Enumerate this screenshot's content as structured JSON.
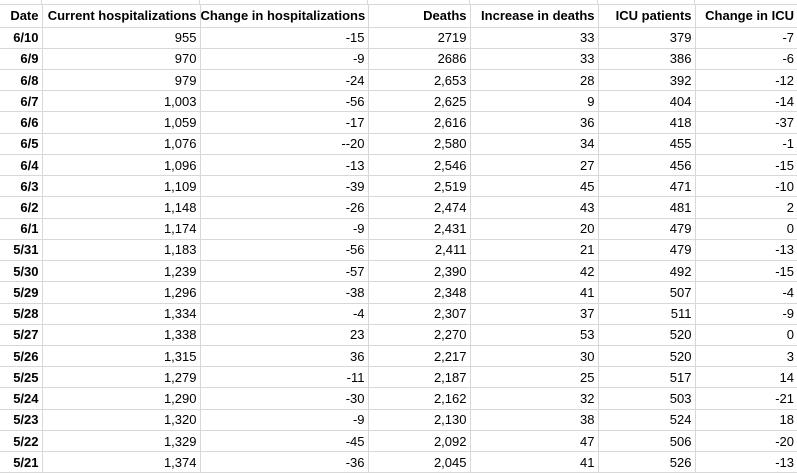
{
  "colors": {
    "background": "#ffffff",
    "gridline": "#d8d8d8",
    "text": "#000000"
  },
  "table": {
    "columns": [
      {
        "key": "date",
        "label": "Date",
        "width": 42
      },
      {
        "key": "current_hospitalizations",
        "label": "Current hospitalizations",
        "width": 158
      },
      {
        "key": "change_in_hospitalizations",
        "label": "Change in hospitalizations",
        "width": 168
      },
      {
        "key": "deaths",
        "label": "Deaths",
        "width": 102
      },
      {
        "key": "increase_in_deaths",
        "label": "Increase in deaths",
        "width": 128
      },
      {
        "key": "icu_patients",
        "label": "ICU patients",
        "width": 97
      },
      {
        "key": "change_in_icu",
        "label": "Change in ICU",
        "width": 102
      }
    ],
    "rows": [
      {
        "date": "6/10",
        "current_hospitalizations": "955",
        "change_in_hospitalizations": "-15",
        "deaths": "2719",
        "increase_in_deaths": "33",
        "icu_patients": "379",
        "change_in_icu": "-7"
      },
      {
        "date": "6/9",
        "current_hospitalizations": "970",
        "change_in_hospitalizations": "-9",
        "deaths": "2686",
        "increase_in_deaths": "33",
        "icu_patients": "386",
        "change_in_icu": "-6"
      },
      {
        "date": "6/8",
        "current_hospitalizations": "979",
        "change_in_hospitalizations": "-24",
        "deaths": "2,653",
        "increase_in_deaths": "28",
        "icu_patients": "392",
        "change_in_icu": "-12"
      },
      {
        "date": "6/7",
        "current_hospitalizations": "1,003",
        "change_in_hospitalizations": "-56",
        "deaths": "2,625",
        "increase_in_deaths": "9",
        "icu_patients": "404",
        "change_in_icu": "-14"
      },
      {
        "date": "6/6",
        "current_hospitalizations": "1,059",
        "change_in_hospitalizations": "-17",
        "deaths": "2,616",
        "increase_in_deaths": "36",
        "icu_patients": "418",
        "change_in_icu": "-37"
      },
      {
        "date": "6/5",
        "current_hospitalizations": "1,076",
        "change_in_hospitalizations": "--20",
        "deaths": "2,580",
        "increase_in_deaths": "34",
        "icu_patients": "455",
        "change_in_icu": "-1"
      },
      {
        "date": "6/4",
        "current_hospitalizations": "1,096",
        "change_in_hospitalizations": "-13",
        "deaths": "2,546",
        "increase_in_deaths": "27",
        "icu_patients": "456",
        "change_in_icu": "-15"
      },
      {
        "date": "6/3",
        "current_hospitalizations": "1,109",
        "change_in_hospitalizations": "-39",
        "deaths": "2,519",
        "increase_in_deaths": "45",
        "icu_patients": "471",
        "change_in_icu": "-10"
      },
      {
        "date": "6/2",
        "current_hospitalizations": "1,148",
        "change_in_hospitalizations": "-26",
        "deaths": "2,474",
        "increase_in_deaths": "43",
        "icu_patients": "481",
        "change_in_icu": "2"
      },
      {
        "date": "6/1",
        "current_hospitalizations": "1,174",
        "change_in_hospitalizations": "-9",
        "deaths": "2,431",
        "increase_in_deaths": "20",
        "icu_patients": "479",
        "change_in_icu": "0"
      },
      {
        "date": "5/31",
        "current_hospitalizations": "1,183",
        "change_in_hospitalizations": "-56",
        "deaths": "2,411",
        "increase_in_deaths": "21",
        "icu_patients": "479",
        "change_in_icu": "-13"
      },
      {
        "date": "5/30",
        "current_hospitalizations": "1,239",
        "change_in_hospitalizations": "-57",
        "deaths": "2,390",
        "increase_in_deaths": "42",
        "icu_patients": "492",
        "change_in_icu": "-15"
      },
      {
        "date": "5/29",
        "current_hospitalizations": "1,296",
        "change_in_hospitalizations": "-38",
        "deaths": "2,348",
        "increase_in_deaths": "41",
        "icu_patients": "507",
        "change_in_icu": "-4"
      },
      {
        "date": "5/28",
        "current_hospitalizations": "1,334",
        "change_in_hospitalizations": "-4",
        "deaths": "2,307",
        "increase_in_deaths": "37",
        "icu_patients": "511",
        "change_in_icu": "-9"
      },
      {
        "date": "5/27",
        "current_hospitalizations": "1,338",
        "change_in_hospitalizations": "23",
        "deaths": "2,270",
        "increase_in_deaths": "53",
        "icu_patients": "520",
        "change_in_icu": "0"
      },
      {
        "date": "5/26",
        "current_hospitalizations": "1,315",
        "change_in_hospitalizations": "36",
        "deaths": "2,217",
        "increase_in_deaths": "30",
        "icu_patients": "520",
        "change_in_icu": "3"
      },
      {
        "date": "5/25",
        "current_hospitalizations": "1,279",
        "change_in_hospitalizations": "-11",
        "deaths": "2,187",
        "increase_in_deaths": "25",
        "icu_patients": "517",
        "change_in_icu": "14"
      },
      {
        "date": "5/24",
        "current_hospitalizations": "1,290",
        "change_in_hospitalizations": "-30",
        "deaths": "2,162",
        "increase_in_deaths": "32",
        "icu_patients": "503",
        "change_in_icu": "-21"
      },
      {
        "date": "5/23",
        "current_hospitalizations": "1,320",
        "change_in_hospitalizations": "-9",
        "deaths": "2,130",
        "increase_in_deaths": "38",
        "icu_patients": "524",
        "change_in_icu": "18"
      },
      {
        "date": "5/22",
        "current_hospitalizations": "1,329",
        "change_in_hospitalizations": "-45",
        "deaths": "2,092",
        "increase_in_deaths": "47",
        "icu_patients": "506",
        "change_in_icu": "-20"
      },
      {
        "date": "5/21",
        "current_hospitalizations": "1,374",
        "change_in_hospitalizations": "-36",
        "deaths": "2,045",
        "increase_in_deaths": "41",
        "icu_patients": "526",
        "change_in_icu": "-13"
      }
    ]
  }
}
